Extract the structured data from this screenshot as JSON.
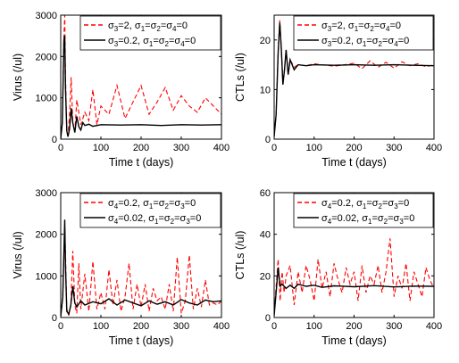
{
  "chart_data": [
    {
      "type": "line",
      "xlabel": "Time t (days)",
      "ylabel": "Virus (/ul)",
      "xlim": [
        0,
        400
      ],
      "ylim": [
        0,
        3000
      ],
      "xticks": [
        "0",
        "100",
        "200",
        "300",
        "400"
      ],
      "yticks": [
        "0",
        "1000",
        "2000",
        "3000"
      ],
      "legend_position": "top-right",
      "series": [
        {
          "name_parts": [
            "σ",
            "3",
            "=2, σ",
            "1",
            "=σ",
            "2",
            "=σ",
            "4",
            "=0"
          ],
          "color": "#ff0000",
          "style": "dashed",
          "x": [
            0,
            4,
            8,
            10,
            12,
            15,
            18,
            22,
            26,
            30,
            35,
            40,
            50,
            60,
            70,
            80,
            90,
            100,
            120,
            140,
            160,
            180,
            200,
            220,
            240,
            260,
            280,
            300,
            320,
            340,
            360,
            380,
            400
          ],
          "values": [
            10,
            400,
            2500,
            3000,
            1500,
            200,
            80,
            600,
            1500,
            400,
            180,
            950,
            350,
            650,
            450,
            1200,
            350,
            800,
            600,
            1300,
            500,
            900,
            1300,
            600,
            900,
            1250,
            700,
            1050,
            800,
            650,
            1000,
            800,
            600
          ]
        },
        {
          "name_parts": [
            "σ",
            "3",
            "=0.2, σ",
            "1",
            "=σ",
            "2",
            "=σ",
            "4",
            "=0"
          ],
          "color": "#000000",
          "style": "solid",
          "x": [
            0,
            4,
            8,
            10,
            12,
            15,
            18,
            22,
            26,
            30,
            35,
            40,
            45,
            50,
            55,
            60,
            70,
            80,
            100,
            150,
            200,
            250,
            300,
            350,
            400
          ],
          "values": [
            10,
            400,
            2400,
            2500,
            1200,
            200,
            60,
            250,
            750,
            400,
            160,
            550,
            300,
            220,
            400,
            330,
            360,
            310,
            350,
            340,
            350,
            330,
            350,
            340,
            350
          ]
        }
      ]
    },
    {
      "type": "line",
      "xlabel": "Time t (days)",
      "ylabel": "CTLs (/ul)",
      "xlim": [
        0,
        400
      ],
      "ylim": [
        0,
        25
      ],
      "xticks": [
        "0",
        "100",
        "200",
        "300",
        "400"
      ],
      "yticks": [
        "0",
        "10",
        "20"
      ],
      "legend_position": "top-right",
      "series": [
        {
          "name_parts": [
            "σ",
            "3",
            "=2, σ",
            "1",
            "=σ",
            "2",
            "=σ",
            "4",
            "=0"
          ],
          "color": "#ff0000",
          "style": "dashed",
          "x": [
            0,
            5,
            10,
            14,
            18,
            22,
            26,
            30,
            35,
            40,
            50,
            60,
            80,
            100,
            150,
            200,
            220,
            240,
            260,
            280,
            300,
            320,
            340,
            360,
            380,
            400
          ],
          "values": [
            0.5,
            5,
            18,
            24,
            18,
            11,
            14,
            18,
            13,
            16,
            14.5,
            15,
            14.8,
            15.2,
            14.7,
            15.3,
            14.2,
            15.8,
            14.5,
            15.5,
            14.3,
            15.6,
            14.8,
            15.2,
            14.6,
            15
          ]
        },
        {
          "name_parts": [
            "σ",
            "3",
            "=0.2, σ",
            "1",
            "=σ",
            "2",
            "=σ",
            "4",
            "=0"
          ],
          "color": "#000000",
          "style": "solid",
          "x": [
            0,
            5,
            10,
            14,
            18,
            22,
            26,
            30,
            35,
            40,
            50,
            60,
            80,
            100,
            150,
            200,
            250,
            300,
            350,
            400
          ],
          "values": [
            0.5,
            5,
            17.5,
            23.5,
            18,
            11,
            14,
            18,
            13,
            16,
            14,
            15,
            14.8,
            15,
            14.9,
            15,
            14.9,
            15,
            14.9,
            14.8
          ]
        }
      ]
    },
    {
      "type": "line",
      "xlabel": "Time t (days)",
      "ylabel": "Virus (/ul)",
      "xlim": [
        0,
        400
      ],
      "ylim": [
        0,
        3000
      ],
      "xticks": [
        "0",
        "100",
        "200",
        "300",
        "400"
      ],
      "yticks": [
        "0",
        "1000",
        "2000",
        "3000"
      ],
      "legend_position": "top-right",
      "series": [
        {
          "name_parts": [
            "σ",
            "4",
            "=0.2, σ",
            "1",
            "=σ",
            "2",
            "=σ",
            "3",
            "=0"
          ],
          "color": "#ff0000",
          "style": "dashed",
          "x": [
            0,
            5,
            10,
            12,
            15,
            20,
            25,
            30,
            35,
            40,
            45,
            50,
            60,
            70,
            80,
            90,
            100,
            110,
            120,
            130,
            140,
            150,
            160,
            170,
            180,
            190,
            200,
            210,
            220,
            230,
            240,
            250,
            260,
            270,
            280,
            290,
            300,
            310,
            320,
            330,
            340,
            350,
            360,
            370,
            380,
            390,
            400
          ],
          "values": [
            20,
            500,
            2100,
            1500,
            200,
            50,
            300,
            1600,
            300,
            100,
            1300,
            200,
            1050,
            150,
            1350,
            200,
            600,
            200,
            1150,
            300,
            900,
            150,
            500,
            1300,
            200,
            800,
            250,
            800,
            150,
            700,
            400,
            500,
            200,
            800,
            150,
            1450,
            100,
            400,
            1500,
            200,
            700,
            250,
            900,
            300,
            350,
            300,
            400
          ]
        },
        {
          "name_parts": [
            "σ",
            "4",
            "=0.02, σ",
            "1",
            "=σ",
            "2",
            "=σ",
            "3",
            "=0"
          ],
          "color": "#000000",
          "style": "solid",
          "x": [
            0,
            5,
            10,
            12,
            15,
            20,
            25,
            30,
            35,
            40,
            50,
            60,
            80,
            100,
            120,
            140,
            160,
            180,
            200,
            220,
            240,
            260,
            280,
            300,
            320,
            340,
            360,
            380,
            400
          ],
          "values": [
            20,
            500,
            2350,
            1200,
            150,
            80,
            300,
            750,
            350,
            250,
            400,
            300,
            380,
            330,
            450,
            300,
            420,
            350,
            280,
            400,
            320,
            380,
            300,
            430,
            350,
            300,
            420,
            380,
            400
          ]
        }
      ]
    },
    {
      "type": "line",
      "xlabel": "Time t (days)",
      "ylabel": "CTLs (/ul)",
      "xlim": [
        0,
        400
      ],
      "ylim": [
        0,
        60
      ],
      "xticks": [
        "0",
        "100",
        "200",
        "300",
        "400"
      ],
      "yticks": [
        "0",
        "20",
        "40",
        "60"
      ],
      "legend_position": "top-right",
      "series": [
        {
          "name_parts": [
            "σ",
            "4",
            "=0.2, σ",
            "1",
            "=σ",
            "2",
            "=σ",
            "3",
            "=0"
          ],
          "color": "#ff0000",
          "style": "dashed",
          "x": [
            0,
            5,
            10,
            15,
            20,
            25,
            30,
            40,
            50,
            60,
            70,
            80,
            90,
            100,
            110,
            120,
            130,
            140,
            150,
            160,
            170,
            180,
            190,
            200,
            210,
            220,
            230,
            240,
            250,
            260,
            270,
            280,
            290,
            300,
            310,
            320,
            330,
            340,
            350,
            360,
            370,
            380,
            390,
            400
          ],
          "values": [
            1,
            15,
            28,
            8,
            22,
            12,
            20,
            25,
            6,
            22,
            12,
            25,
            18,
            8,
            28,
            14,
            22,
            10,
            26,
            18,
            12,
            24,
            16,
            22,
            8,
            25,
            12,
            20,
            16,
            25,
            12,
            22,
            38,
            10,
            20,
            14,
            26,
            8,
            22,
            16,
            10,
            24,
            18,
            14
          ]
        },
        {
          "name_parts": [
            "σ",
            "4",
            "=0.02, σ",
            "1",
            "=σ",
            "2",
            "=σ",
            "3",
            "=0"
          ],
          "color": "#000000",
          "style": "solid",
          "x": [
            0,
            5,
            10,
            15,
            20,
            30,
            40,
            50,
            60,
            80,
            100,
            120,
            150,
            200,
            250,
            300,
            350,
            400
          ],
          "values": [
            1,
            12,
            24,
            15,
            16,
            14,
            15.5,
            14,
            16,
            15,
            15.5,
            14.5,
            15.2,
            14.8,
            15.3,
            14.7,
            15.1,
            15
          ]
        }
      ]
    }
  ]
}
